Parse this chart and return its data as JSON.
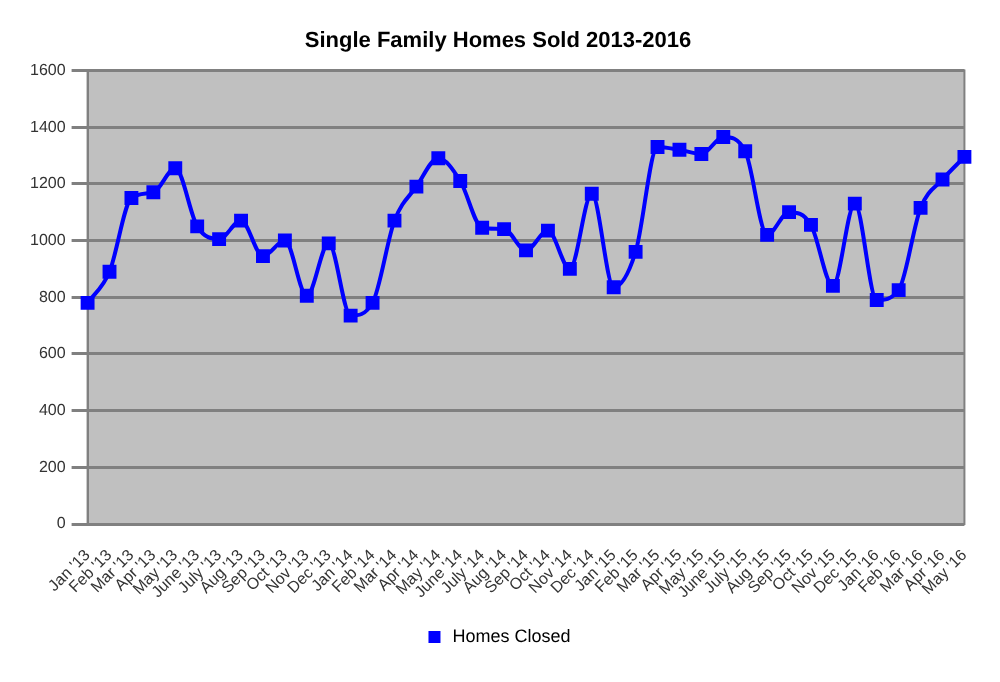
{
  "chart_data": {
    "type": "line",
    "title": "Single Family Homes Sold 2013-2016",
    "categories": [
      "Jan '13",
      "Feb '13",
      "Mar '13",
      "Apr '13",
      "May '13",
      "June '13",
      "July '13",
      "Aug '13",
      "Sep '13",
      "Oct '13",
      "Nov '13",
      "Dec '13",
      "Jan '14",
      "Feb '14",
      "Mar '14",
      "Apr '14",
      "May '14",
      "June '14",
      "July '14",
      "Aug '14",
      "Sep '14",
      "Oct '14",
      "Nov '14",
      "Dec '14",
      "Jan '15",
      "Feb '15",
      "Mar '15",
      "Apr '15",
      "May '15",
      "June '15",
      "July '15",
      "Aug '15",
      "Sep '15",
      "Oct '15",
      "Nov '15",
      "Dec '15",
      "Jan '16",
      "Feb '16",
      "Mar '16",
      "Apr '16",
      "May '16"
    ],
    "series": [
      {
        "name": "Homes Closed",
        "color": "#0000ff",
        "values": [
          780,
          890,
          1150,
          1170,
          1255,
          1050,
          1005,
          1070,
          945,
          1000,
          805,
          990,
          735,
          780,
          1070,
          1190,
          1290,
          1210,
          1045,
          1040,
          965,
          1035,
          900,
          1165,
          835,
          960,
          1330,
          1320,
          1305,
          1365,
          1315,
          1020,
          1100,
          1055,
          840,
          1130,
          790,
          825,
          1115,
          1215,
          1295
        ]
      }
    ],
    "ylim": [
      0,
      1600
    ],
    "yticks": [
      0,
      200,
      400,
      600,
      800,
      1000,
      1200,
      1400,
      1600
    ],
    "grid": "y",
    "legend": "bottom",
    "marker": "square",
    "line_style": "solid"
  }
}
